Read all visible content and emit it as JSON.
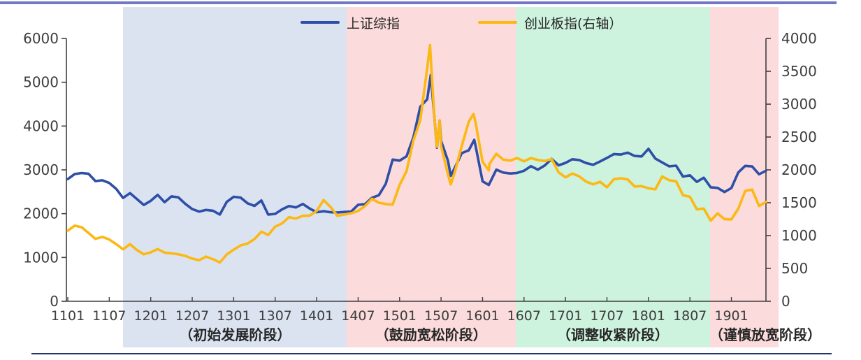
{
  "page": {
    "top_rule_color": "#7277c7",
    "bottom_rule_color": "#1f3a68",
    "background": "#ffffff"
  },
  "chart_data": {
    "type": "line",
    "title": "",
    "axis_color": "#404040",
    "text_color": "#3d3d3d",
    "phase_label_color": "#262626",
    "legend": [
      {
        "label": "上证综指",
        "color": "#2e4fa7",
        "axis": "left"
      },
      {
        "label": "创业板指(右轴）",
        "color": "#fcb813",
        "axis": "right"
      }
    ],
    "left_axis": {
      "min": 0,
      "max": 6000,
      "step": 1000,
      "tick_labels": [
        "0",
        "1000",
        "2000",
        "3000",
        "4000",
        "5000",
        "6000"
      ]
    },
    "right_axis": {
      "min": 0,
      "max": 4000,
      "step": 500,
      "tick_labels": [
        "0",
        "500",
        "1000",
        "1500",
        "2000",
        "2500",
        "3000",
        "3500",
        "4000"
      ]
    },
    "x_axis": {
      "start_month": 0,
      "end_month": 101,
      "label_every_months": 6,
      "tick_labels": [
        "1101",
        "1107",
        "1201",
        "1207",
        "1301",
        "1307",
        "1401",
        "1407",
        "1501",
        "1507",
        "1601",
        "1607",
        "1701",
        "1707",
        "1801",
        "1807",
        "1901"
      ]
    },
    "regions": [
      {
        "label": "（初始发展阶段）",
        "color": "#dbe3f1",
        "from_month": 8,
        "to_month": 40.3,
        "label_month": 24.2
      },
      {
        "label": "（鼓励宽松阶段）",
        "color": "#fbdbdb",
        "from_month": 40.3,
        "to_month": 64.8,
        "label_month": 52.55
      },
      {
        "label": "（调整收紧阶段）",
        "color": "#cdf2dd",
        "from_month": 64.8,
        "to_month": 92.9,
        "label_month": 78.85
      },
      {
        "label": "（谨慎放宽阶段）",
        "color": "#fbdbdb",
        "from_month": 92.9,
        "to_month": 102.8,
        "label_month": 100.9
      }
    ],
    "series": [
      {
        "name": "上证综指",
        "axis": "left",
        "color": "#2e4fa7",
        "points": [
          [
            0,
            2790
          ],
          [
            1,
            2905
          ],
          [
            2,
            2928
          ],
          [
            3,
            2911
          ],
          [
            4,
            2743
          ],
          [
            5,
            2762
          ],
          [
            6,
            2701
          ],
          [
            7,
            2567
          ],
          [
            8,
            2359
          ],
          [
            9,
            2468
          ],
          [
            10,
            2333
          ],
          [
            11,
            2199
          ],
          [
            12,
            2293
          ],
          [
            13,
            2428
          ],
          [
            14,
            2263
          ],
          [
            15,
            2396
          ],
          [
            16,
            2372
          ],
          [
            17,
            2225
          ],
          [
            18,
            2104
          ],
          [
            19,
            2047
          ],
          [
            20,
            2086
          ],
          [
            21,
            2068
          ],
          [
            22,
            1980
          ],
          [
            23,
            2269
          ],
          [
            24,
            2385
          ],
          [
            25,
            2366
          ],
          [
            26,
            2237
          ],
          [
            27,
            2177
          ],
          [
            28,
            2301
          ],
          [
            29,
            1979
          ],
          [
            30,
            1994
          ],
          [
            31,
            2098
          ],
          [
            32,
            2175
          ],
          [
            33,
            2141
          ],
          [
            34,
            2221
          ],
          [
            35,
            2116
          ],
          [
            36,
            2033
          ],
          [
            37,
            2056
          ],
          [
            38,
            2033
          ],
          [
            39,
            2026
          ],
          [
            40,
            2039
          ],
          [
            41,
            2048
          ],
          [
            42,
            2202
          ],
          [
            43,
            2217
          ],
          [
            44,
            2364
          ],
          [
            45,
            2420
          ],
          [
            46,
            2683
          ],
          [
            47,
            3235
          ],
          [
            48,
            3210
          ],
          [
            49,
            3310
          ],
          [
            50,
            3748
          ],
          [
            51,
            4442
          ],
          [
            52,
            4612
          ],
          [
            52.5,
            5166
          ],
          [
            53,
            4277
          ],
          [
            53.4,
            3507
          ],
          [
            53.8,
            4124
          ],
          [
            54,
            3664
          ],
          [
            55,
            3206
          ],
          [
            55.4,
            2864
          ],
          [
            56,
            3053
          ],
          [
            57,
            3383
          ],
          [
            58,
            3445
          ],
          [
            58.8,
            3684
          ],
          [
            59,
            3539
          ],
          [
            60,
            2738
          ],
          [
            60.9,
            2655
          ],
          [
            61,
            2688
          ],
          [
            62,
            3004
          ],
          [
            63,
            2938
          ],
          [
            64,
            2917
          ],
          [
            65,
            2930
          ],
          [
            66,
            2979
          ],
          [
            67,
            3085
          ],
          [
            68,
            3005
          ],
          [
            69,
            3100
          ],
          [
            70,
            3250
          ],
          [
            71,
            3104
          ],
          [
            72,
            3159
          ],
          [
            73,
            3242
          ],
          [
            74,
            3223
          ],
          [
            75,
            3155
          ],
          [
            76,
            3117
          ],
          [
            77,
            3192
          ],
          [
            78,
            3273
          ],
          [
            79,
            3361
          ],
          [
            80,
            3349
          ],
          [
            81,
            3393
          ],
          [
            82,
            3317
          ],
          [
            83,
            3307
          ],
          [
            84,
            3481
          ],
          [
            85,
            3259
          ],
          [
            86,
            3169
          ],
          [
            87,
            3082
          ],
          [
            88,
            3095
          ],
          [
            89,
            2847
          ],
          [
            90,
            2876
          ],
          [
            91,
            2725
          ],
          [
            92,
            2821
          ],
          [
            93,
            2603
          ],
          [
            94,
            2588
          ],
          [
            95,
            2494
          ],
          [
            96,
            2585
          ],
          [
            97,
            2941
          ],
          [
            98,
            3091
          ],
          [
            99,
            3078
          ],
          [
            100,
            2899
          ],
          [
            101,
            2979
          ]
        ]
      },
      {
        "name": "创业板指(右轴）",
        "axis": "right",
        "color": "#fcb813",
        "points": [
          [
            0,
            1074
          ],
          [
            1,
            1150
          ],
          [
            2,
            1128
          ],
          [
            3,
            1040
          ],
          [
            4,
            950
          ],
          [
            5,
            980
          ],
          [
            6,
            940
          ],
          [
            7,
            870
          ],
          [
            8,
            790
          ],
          [
            9,
            870
          ],
          [
            10,
            780
          ],
          [
            11,
            715
          ],
          [
            12,
            745
          ],
          [
            13,
            795
          ],
          [
            14,
            740
          ],
          [
            15,
            730
          ],
          [
            16,
            715
          ],
          [
            17,
            690
          ],
          [
            18,
            650
          ],
          [
            19,
            625
          ],
          [
            20,
            680
          ],
          [
            21,
            640
          ],
          [
            22,
            590
          ],
          [
            23,
            713
          ],
          [
            24,
            785
          ],
          [
            25,
            850
          ],
          [
            26,
            880
          ],
          [
            27,
            945
          ],
          [
            28,
            1060
          ],
          [
            29,
            1010
          ],
          [
            30,
            1135
          ],
          [
            31,
            1185
          ],
          [
            32,
            1280
          ],
          [
            33,
            1260
          ],
          [
            34,
            1300
          ],
          [
            35,
            1304
          ],
          [
            36,
            1375
          ],
          [
            37,
            1540
          ],
          [
            38,
            1436
          ],
          [
            39,
            1300
          ],
          [
            40,
            1320
          ],
          [
            41,
            1340
          ],
          [
            42,
            1375
          ],
          [
            43,
            1450
          ],
          [
            44,
            1560
          ],
          [
            45,
            1500
          ],
          [
            46,
            1480
          ],
          [
            47,
            1471
          ],
          [
            48,
            1770
          ],
          [
            49,
            1980
          ],
          [
            50,
            2450
          ],
          [
            51,
            2756
          ],
          [
            52,
            3550
          ],
          [
            52.4,
            3900
          ],
          [
            53,
            2853
          ],
          [
            53.4,
            2352
          ],
          [
            53.8,
            2750
          ],
          [
            54,
            2364
          ],
          [
            55,
            1932
          ],
          [
            55.4,
            1779
          ],
          [
            56,
            1972
          ],
          [
            57,
            2365
          ],
          [
            58,
            2732
          ],
          [
            58.7,
            2850
          ],
          [
            59,
            2714
          ],
          [
            60,
            2125
          ],
          [
            60.9,
            1994
          ],
          [
            61,
            2090
          ],
          [
            62,
            2245
          ],
          [
            63,
            2155
          ],
          [
            64,
            2140
          ],
          [
            65,
            2180
          ],
          [
            66,
            2130
          ],
          [
            67,
            2180
          ],
          [
            68,
            2150
          ],
          [
            69,
            2135
          ],
          [
            70,
            2163
          ],
          [
            71,
            1962
          ],
          [
            72,
            1886
          ],
          [
            73,
            1945
          ],
          [
            74,
            1900
          ],
          [
            75,
            1820
          ],
          [
            76,
            1780
          ],
          [
            77,
            1818
          ],
          [
            78,
            1735
          ],
          [
            79,
            1857
          ],
          [
            80,
            1872
          ],
          [
            81,
            1853
          ],
          [
            82,
            1747
          ],
          [
            83,
            1752
          ],
          [
            84,
            1720
          ],
          [
            85,
            1703
          ],
          [
            86,
            1900
          ],
          [
            87,
            1843
          ],
          [
            88,
            1827
          ],
          [
            89,
            1614
          ],
          [
            90,
            1590
          ],
          [
            91,
            1400
          ],
          [
            92,
            1411
          ],
          [
            93,
            1228
          ],
          [
            94,
            1336
          ],
          [
            95,
            1250
          ],
          [
            96,
            1246
          ],
          [
            97,
            1410
          ],
          [
            98,
            1680
          ],
          [
            99,
            1700
          ],
          [
            100,
            1450
          ],
          [
            101,
            1511
          ]
        ]
      }
    ]
  }
}
